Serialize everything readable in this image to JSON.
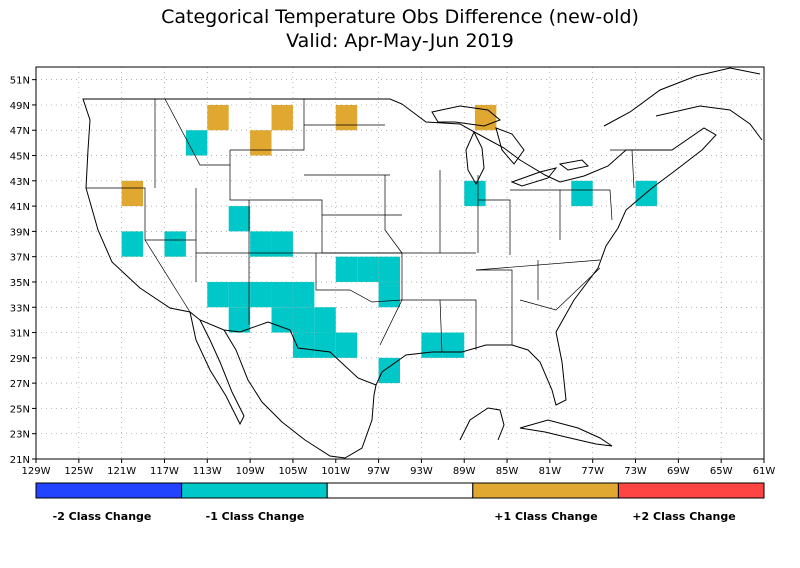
{
  "title": "Categorical Temperature Obs Difference (new-old)",
  "subtitle": "Valid: Apr-May-Jun 2019",
  "lon_labels": [
    "129W",
    "125W",
    "121W",
    "117W",
    "113W",
    "109W",
    "105W",
    "101W",
    "97W",
    "93W",
    "89W",
    "85W",
    "81W",
    "77W",
    "73W",
    "69W",
    "65W",
    "61W"
  ],
  "lat_labels": [
    "21N",
    "23N",
    "25N",
    "27N",
    "29N",
    "31N",
    "33N",
    "35N",
    "37N",
    "39N",
    "41N",
    "43N",
    "45N",
    "47N",
    "49N",
    "51N"
  ],
  "legend": {
    "colors": [
      "#2244ff",
      "#00c8c8",
      "#ffffff",
      "#e0a830",
      "#ff4444"
    ],
    "labels": [
      "-2 Class Change",
      "-1 Class Change",
      "+1 Class Change",
      "+2 Class Change"
    ]
  },
  "map_data": {
    "grid_step_deg": 2,
    "extent": {
      "lon_min": -129,
      "lon_max": -61,
      "lat_min": 21,
      "lat_max": 52
    },
    "cells": [
      {
        "lon": -112,
        "lat": 48,
        "change": 1
      },
      {
        "lon": -106,
        "lat": 48,
        "change": 1
      },
      {
        "lon": -100,
        "lat": 48,
        "change": 1
      },
      {
        "lon": -108,
        "lat": 46,
        "change": 1
      },
      {
        "lon": -114,
        "lat": 46,
        "change": -1
      },
      {
        "lon": -87,
        "lat": 48,
        "change": 1
      },
      {
        "lon": -120,
        "lat": 42,
        "change": 1
      },
      {
        "lon": -88,
        "lat": 42,
        "change": -1
      },
      {
        "lon": -78,
        "lat": 42,
        "change": -1
      },
      {
        "lon": -72,
        "lat": 42,
        "change": -1
      },
      {
        "lon": -110,
        "lat": 40,
        "change": -1
      },
      {
        "lon": -120,
        "lat": 38,
        "change": -1
      },
      {
        "lon": -116,
        "lat": 38,
        "change": -1
      },
      {
        "lon": -108,
        "lat": 38,
        "change": -1
      },
      {
        "lon": -106,
        "lat": 38,
        "change": -1
      },
      {
        "lon": -100,
        "lat": 36,
        "change": -1
      },
      {
        "lon": -98,
        "lat": 36,
        "change": -1
      },
      {
        "lon": -96,
        "lat": 36,
        "change": -1
      },
      {
        "lon": -112,
        "lat": 34,
        "change": -1
      },
      {
        "lon": -110,
        "lat": 34,
        "change": -1
      },
      {
        "lon": -108,
        "lat": 34,
        "change": -1
      },
      {
        "lon": -106,
        "lat": 34,
        "change": -1
      },
      {
        "lon": -104,
        "lat": 34,
        "change": -1
      },
      {
        "lon": -96,
        "lat": 34,
        "change": -1
      },
      {
        "lon": -110,
        "lat": 32,
        "change": -1
      },
      {
        "lon": -106,
        "lat": 32,
        "change": -1
      },
      {
        "lon": -104,
        "lat": 32,
        "change": -1
      },
      {
        "lon": -102,
        "lat": 32,
        "change": -1
      },
      {
        "lon": -104,
        "lat": 30,
        "change": -1
      },
      {
        "lon": -102,
        "lat": 30,
        "change": -1
      },
      {
        "lon": -100,
        "lat": 30,
        "change": -1
      },
      {
        "lon": -92,
        "lat": 30,
        "change": -1
      },
      {
        "lon": -90,
        "lat": 30,
        "change": -1
      },
      {
        "lon": -96,
        "lat": 28,
        "change": -1
      }
    ]
  }
}
